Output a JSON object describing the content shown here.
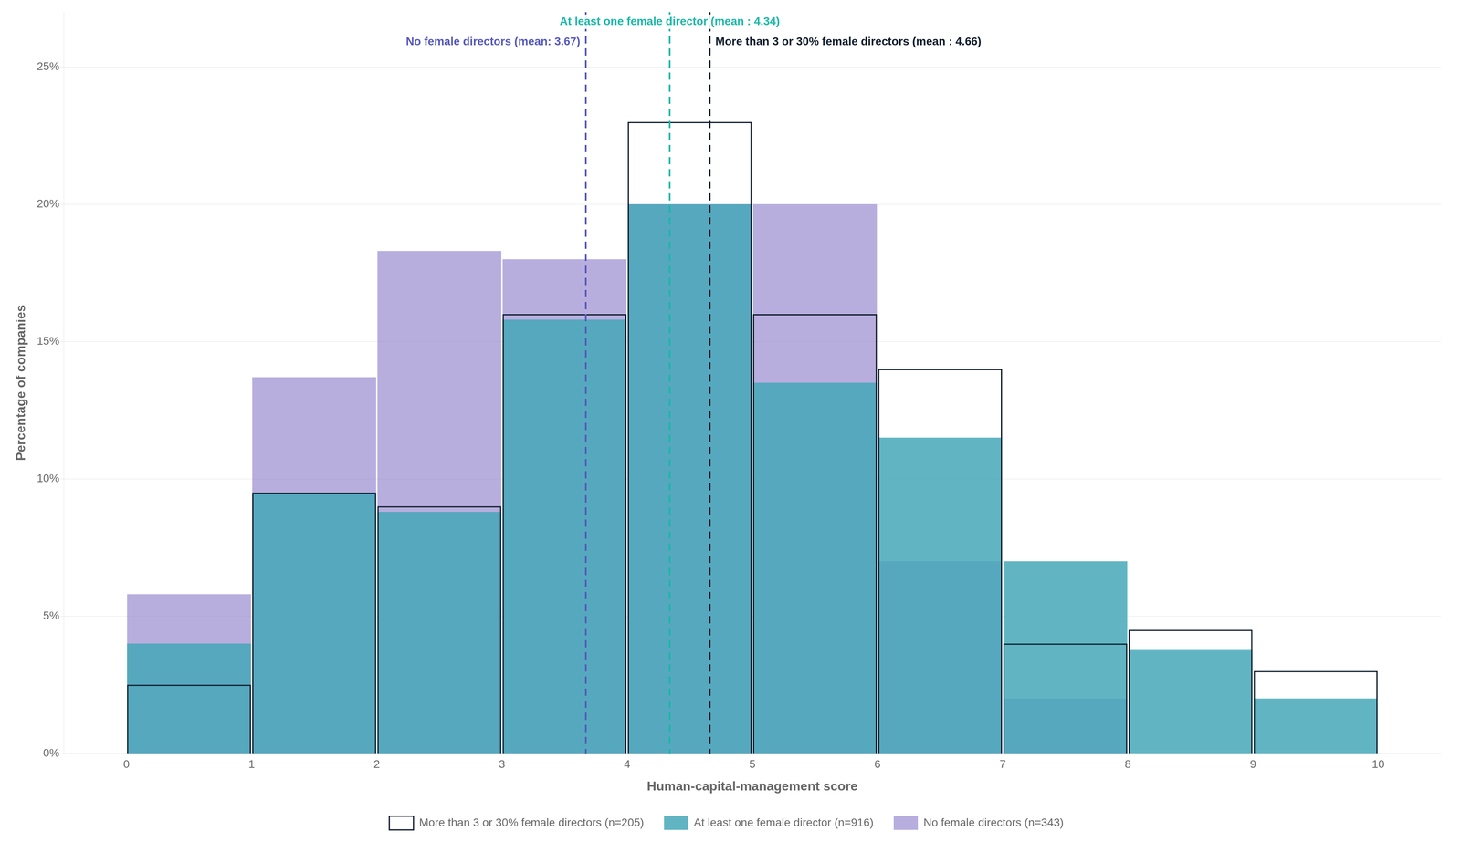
{
  "chart_data": {
    "type": "histogram",
    "bins": [
      0,
      1,
      2,
      3,
      4,
      5,
      6,
      7,
      8,
      9,
      10
    ],
    "series": [
      {
        "name": "No female directors (n=343)",
        "color": "#8878c8",
        "values": [
          5.8,
          13.7,
          18.3,
          18.0,
          20.0,
          20.0,
          7.0,
          2.0,
          0.0,
          0.0
        ]
      },
      {
        "name": "At least one female director (n=916)",
        "color": "#45a8b8",
        "values": [
          4.0,
          9.5,
          8.8,
          15.8,
          20.0,
          13.5,
          11.5,
          7.0,
          3.8,
          2.0
        ]
      },
      {
        "name": "More than 3 or 30% female directors (n=205)",
        "color": "#0d1b2a",
        "values": [
          2.5,
          9.5,
          9.0,
          16.0,
          23.0,
          16.0,
          14.0,
          4.0,
          4.5,
          3.0
        ]
      }
    ],
    "annotations": [
      {
        "text": "At least one female director (mean : 4.34)",
        "x": 4.34,
        "color": "#18b8a8"
      },
      {
        "text": "No female directors (mean: 3.67)",
        "x": 3.67,
        "color": "#5558bb"
      },
      {
        "text": "More than 3 or 30% female directors (mean : 4.66)",
        "x": 4.66,
        "color": "#0d1b2a"
      }
    ],
    "xlabel": "Human-capital-management score",
    "ylabel": "Percentage of companies",
    "xlim": [
      -0.5,
      10.5
    ],
    "xticks": [
      0,
      1,
      2,
      3,
      4,
      5,
      6,
      7,
      8,
      9,
      10
    ],
    "ylim": [
      0,
      27
    ],
    "yticks": [
      {
        "value": 0,
        "label": "0%"
      },
      {
        "value": 5,
        "label": "5%"
      },
      {
        "value": 10,
        "label": "10%"
      },
      {
        "value": 15,
        "label": "15%"
      },
      {
        "value": 20,
        "label": "20%"
      },
      {
        "value": 25,
        "label": "25%"
      }
    ],
    "grid": "y",
    "legend": "bottom"
  }
}
